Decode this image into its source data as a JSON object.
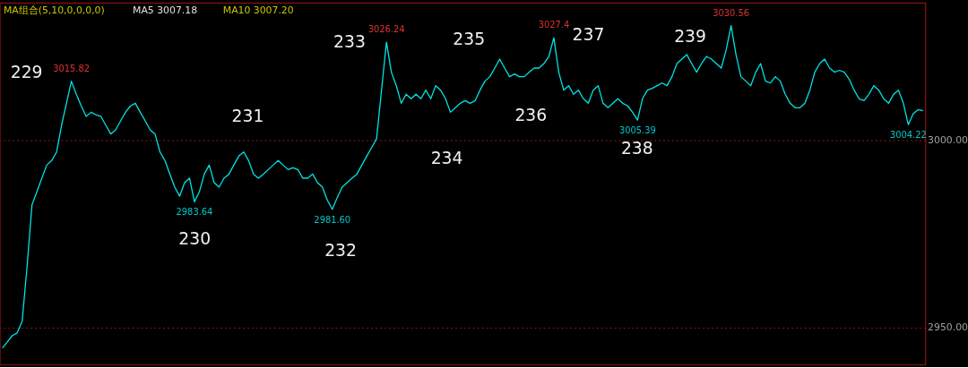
{
  "chart_data": {
    "type": "line",
    "categories": [
      null,
      null,
      null,
      null,
      null,
      null,
      null,
      null,
      null,
      null,
      null,
      null,
      null,
      null,
      null,
      null,
      null,
      null,
      null,
      null,
      null,
      null,
      null,
      null,
      null,
      null,
      null,
      null,
      null,
      null,
      null,
      null,
      null,
      null,
      null,
      null,
      null,
      null,
      null,
      null,
      null,
      null,
      null,
      null,
      null,
      null,
      null,
      null,
      null,
      null,
      null,
      null,
      null,
      null,
      null,
      null,
      null,
      null,
      null,
      null,
      null,
      null,
      null,
      null,
      null,
      null,
      null,
      null,
      null,
      null,
      null,
      null,
      null,
      null,
      null,
      null,
      null,
      null,
      null,
      null,
      null,
      null,
      null,
      null,
      null,
      null,
      null,
      null,
      null,
      null,
      null,
      null,
      null,
      null,
      null,
      null,
      null,
      null,
      null,
      null,
      null,
      null,
      null,
      null,
      null,
      null,
      null,
      null,
      null,
      null,
      null,
      null,
      null,
      null,
      null,
      null,
      null,
      null,
      null,
      null,
      null,
      null,
      null,
      null,
      null,
      null,
      null,
      null,
      null,
      null,
      null,
      null,
      null,
      null,
      null,
      null,
      null,
      null,
      null,
      null,
      null,
      null,
      null,
      null,
      null,
      null,
      null,
      null,
      null,
      null,
      null,
      null,
      null,
      null,
      null,
      null,
      null,
      null,
      null,
      null,
      null,
      null,
      null,
      null,
      null,
      null,
      null,
      null,
      null,
      null,
      null,
      null,
      null,
      null,
      null,
      null,
      null,
      null,
      null,
      null,
      null,
      null,
      null,
      null,
      null,
      null,
      null,
      null
    ],
    "series": [
      {
        "color": "#00e5e5",
        "values": [
          2944.6,
          2946.2,
          2947.9,
          2948.6,
          2951.7,
          2966.3,
          2982.8,
          2986.3,
          2989.9,
          2993.4,
          2994.6,
          2996.9,
          3004.0,
          3009.9,
          3015.8,
          3012.3,
          3009.2,
          3006.4,
          3007.5,
          3006.8,
          3006.4,
          3004.0,
          3001.7,
          3002.8,
          3005.2,
          3007.5,
          3009.2,
          3009.9,
          3007.5,
          3005.2,
          3002.8,
          3001.7,
          2996.9,
          2994.6,
          2991.0,
          2987.5,
          2985.1,
          2988.7,
          2989.9,
          2983.6,
          2986.3,
          2991.0,
          2993.4,
          2988.7,
          2987.5,
          2989.9,
          2991.0,
          2993.4,
          2995.8,
          2996.9,
          2994.6,
          2991.0,
          2989.9,
          2991.0,
          2992.2,
          2993.4,
          2994.6,
          2993.4,
          2992.2,
          2992.7,
          2992.2,
          2989.9,
          2989.9,
          2991.0,
          2988.7,
          2987.5,
          2984.0,
          2981.6,
          2984.7,
          2987.5,
          2988.7,
          2989.9,
          2991.0,
          2993.4,
          2995.8,
          2998.1,
          3000.5,
          3013.4,
          3026.2,
          3018.2,
          3014.6,
          3009.9,
          3012.3,
          3011.1,
          3012.3,
          3011.1,
          3013.4,
          3011.1,
          3014.6,
          3013.4,
          3011.1,
          3007.5,
          3008.7,
          3009.9,
          3010.6,
          3009.9,
          3010.6,
          3013.4,
          3015.8,
          3017.0,
          3019.3,
          3021.7,
          3019.3,
          3017.0,
          3017.7,
          3017.0,
          3017.0,
          3018.2,
          3019.3,
          3019.3,
          3020.5,
          3022.4,
          3027.4,
          3018.2,
          3013.4,
          3014.6,
          3012.3,
          3013.4,
          3011.1,
          3009.9,
          3013.4,
          3014.6,
          3009.9,
          3008.7,
          3009.9,
          3011.1,
          3009.9,
          3009.2,
          3007.5,
          3005.4,
          3011.1,
          3013.4,
          3013.9,
          3014.6,
          3015.3,
          3014.6,
          3017.0,
          3020.5,
          3021.7,
          3022.9,
          3020.5,
          3018.2,
          3020.5,
          3022.4,
          3021.7,
          3020.5,
          3019.3,
          3024.1,
          3030.6,
          3022.9,
          3017.0,
          3015.8,
          3014.6,
          3018.2,
          3020.5,
          3015.8,
          3015.3,
          3017.0,
          3015.8,
          3012.3,
          3009.9,
          3008.7,
          3008.7,
          3009.9,
          3013.4,
          3018.2,
          3020.5,
          3021.7,
          3019.3,
          3018.2,
          3018.7,
          3018.2,
          3016.3,
          3013.4,
          3011.1,
          3010.6,
          3012.3,
          3014.6,
          3013.4,
          3011.1,
          3009.9,
          3012.3,
          3013.4,
          3009.9,
          3004.2,
          3007.1,
          3008.2,
          3007.9
        ]
      }
    ],
    "ylim": [
      2940.1,
      3036.6
    ],
    "yticks": [
      {
        "value": 3000,
        "label": "3000.00"
      },
      {
        "value": 2950,
        "label": "2950.00"
      }
    ],
    "grid": "y",
    "marker": "none",
    "line_style": "solid",
    "annotations": [
      "MA组合(5,10,0,0,0,0)",
      "MA5 3007.18",
      "MA10 3007.20",
      {
        "text": "3015.82",
        "y": 3015.8
      },
      {
        "text": "2983.64",
        "y": 2983.6
      },
      {
        "text": "2981.60",
        "y": 2981.6
      },
      {
        "text": "3026.24",
        "y": 3026.2
      },
      {
        "text": "3027.4",
        "y": 3027.4
      },
      {
        "text": "3005.39",
        "y": 3005.4
      },
      {
        "text": "3030.56",
        "y": 3030.6
      },
      {
        "text": "3004.22",
        "y": 3004.2
      },
      "229",
      "230",
      "231",
      "232",
      "233",
      "234",
      "235",
      "236",
      "237",
      "238",
      "239"
    ]
  }
}
